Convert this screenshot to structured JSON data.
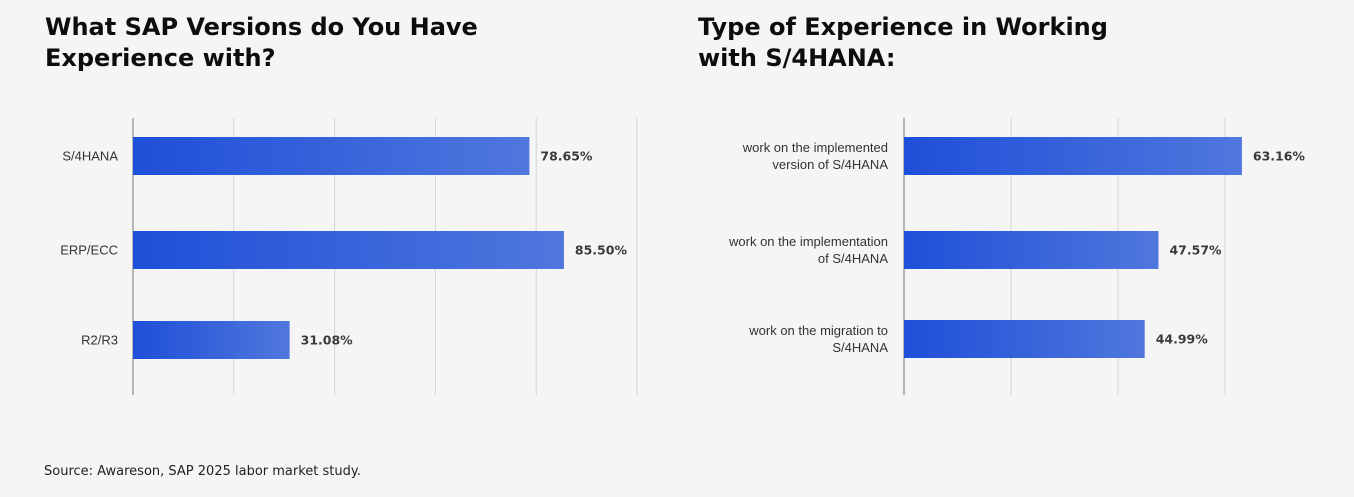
{
  "chart_data": [
    {
      "type": "bar",
      "orientation": "horizontal",
      "title_lines": [
        "What SAP Versions do You Have",
        "Experience with?"
      ],
      "categories": [
        [
          "S/4HANA"
        ],
        [
          "ERP/ECC"
        ],
        [
          "R2/R3"
        ]
      ],
      "values": [
        78.65,
        85.5,
        31.08
      ],
      "value_labels": [
        "78.65%",
        "85.50%",
        "31.08%"
      ],
      "xlim": [
        0,
        100
      ],
      "grid": true,
      "legend": "none",
      "bar_color_start": "#1e4fd8",
      "bar_color_end": "#5077dd"
    },
    {
      "type": "bar",
      "orientation": "horizontal",
      "title_lines": [
        "Type of Experience in Working",
        "with S/4HANA:"
      ],
      "categories": [
        [
          "work on the implemented",
          "version of S/4HANA"
        ],
        [
          "work on the implementation",
          "of S/4HANA"
        ],
        [
          "work on the migration to",
          "S/4HANA"
        ]
      ],
      "values": [
        63.16,
        47.57,
        44.99
      ],
      "value_labels": [
        "63.16%",
        "47.57%",
        "44.99%"
      ],
      "xlim": [
        0,
        70
      ],
      "grid": true,
      "legend": "none",
      "bar_color_start": "#1e4fd8",
      "bar_color_end": "#5077dd"
    }
  ],
  "source": "Source: Awareson, SAP 2025 labor market study."
}
